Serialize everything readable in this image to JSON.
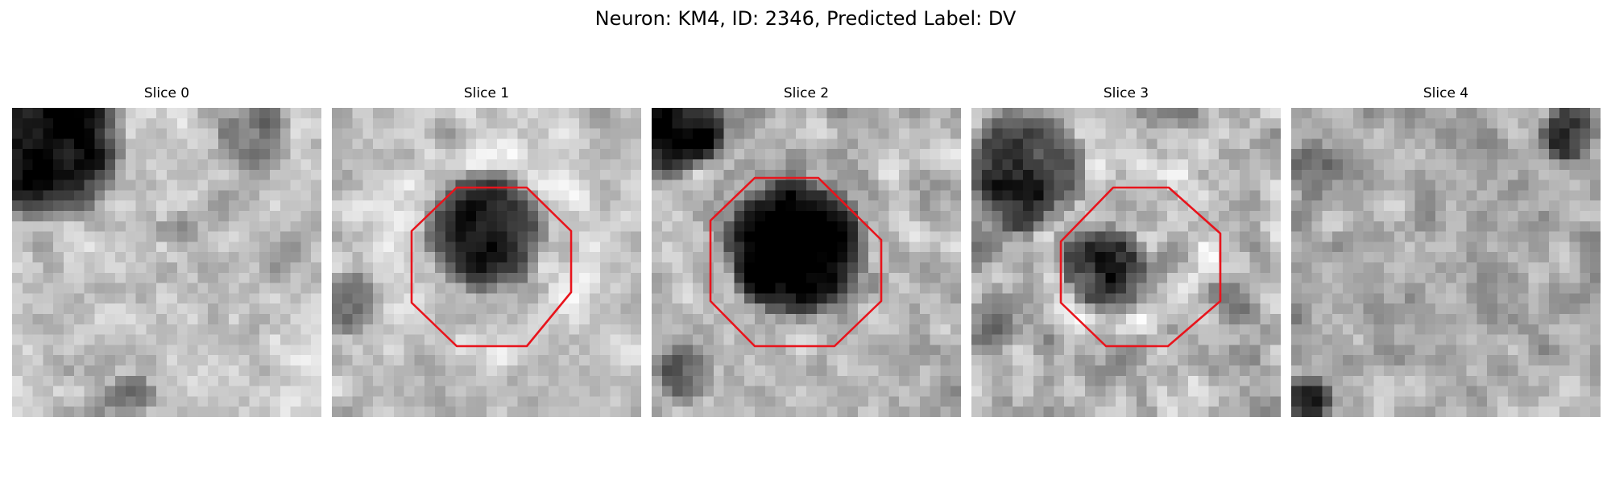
{
  "figure": {
    "title": "Neuron: KM4, ID: 2346, Predicted Label: DV",
    "roi_color": "#e8141c",
    "colormap": "gray"
  },
  "slices": [
    {
      "title": "Slice 0",
      "has_roi": false
    },
    {
      "title": "Slice 1",
      "has_roi": true
    },
    {
      "title": "Slice 2",
      "has_roi": true
    },
    {
      "title": "Slice 3",
      "has_roi": true
    },
    {
      "title": "Slice 4",
      "has_roi": false
    }
  ]
}
